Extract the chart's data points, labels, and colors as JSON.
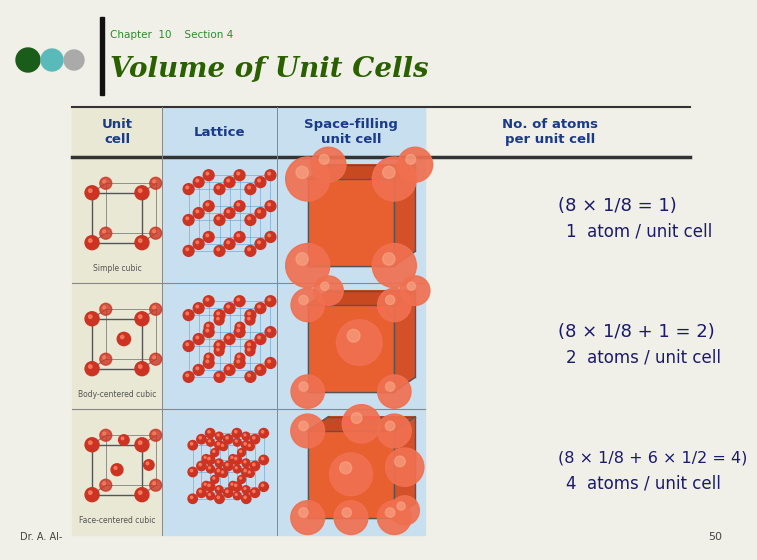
{
  "background_color": "#f0f0e8",
  "title": "Volume of Unit Cells",
  "title_color": "#2a6000",
  "chapter_text": "Chapter  10    Section 4",
  "chapter_color": "#2e8b2e",
  "col_headers": [
    "Unit\ncell",
    "Lattice",
    "Space-filling\nunit cell"
  ],
  "right_header": "No. of atoms\nper unit cell",
  "col_header_color": "#1a3a8a",
  "table_col0_bg": "#e8e8d4",
  "table_col12_bg": "#c8dff0",
  "row_labels": [
    "Simple cubic",
    "Body-centered cubic",
    "Face-centered cubic"
  ],
  "formulas": [
    "(8 × 1/8 = 1)",
    "(8 × 1/8 + 1 = 2)",
    "(8 × 1/8 + 6 × 1/2 = 4)"
  ],
  "subtext": [
    "1  atom / unit cell",
    "2  atoms / unit cell",
    "4  atoms / unit cell"
  ],
  "formula_color": "#1a1a6e",
  "subtext_color": "#1a1a6e",
  "dots_colors": [
    "#1a5c1a",
    "#5ababa",
    "#aaaaaa"
  ],
  "accent_bar_color": "#111111",
  "page_number": "50",
  "footer_text": "Dr. A. Al-"
}
